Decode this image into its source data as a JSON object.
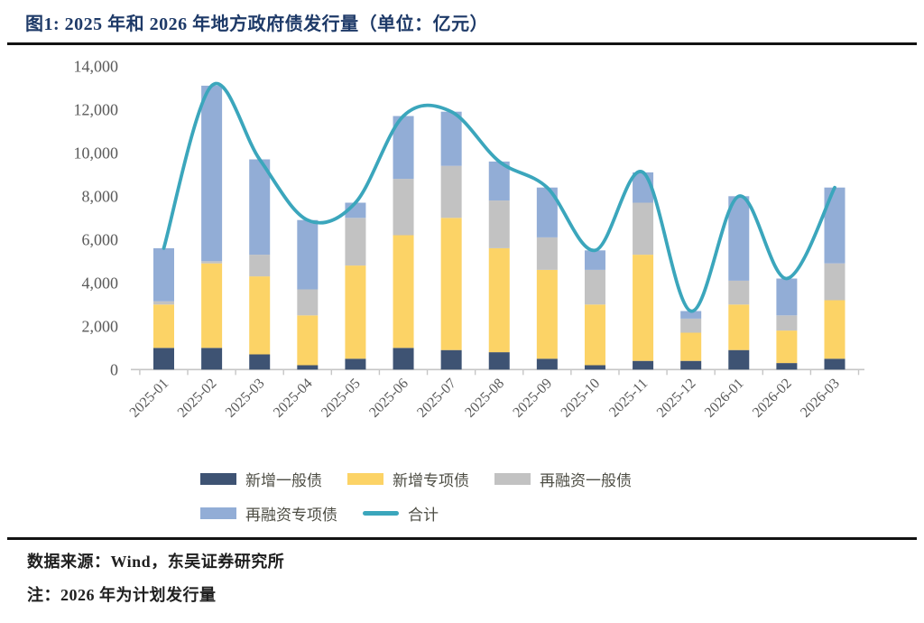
{
  "header": {
    "title": "图1:  2025 年和 2026 年地方政府债发行量（单位：亿元）"
  },
  "chart_data": {
    "type": "bar",
    "subtype": "stacked-bar-with-line",
    "title": "2025 年和 2026 年地方政府债发行量",
    "unit": "亿元",
    "xlabel": "",
    "ylabel": "",
    "ylim": [
      0,
      14000
    ],
    "ytick_step": 2000,
    "grid": false,
    "stacked": true,
    "legend_position": "bottom",
    "categories": [
      "2025-01",
      "2025-02",
      "2025-03",
      "2025-04",
      "2025-05",
      "2025-06",
      "2025-07",
      "2025-08",
      "2025-09",
      "2025-10",
      "2025-11",
      "2025-12",
      "2026-01",
      "2026-02",
      "2026-03"
    ],
    "series": [
      {
        "name": "新增一般债",
        "type": "bar",
        "color": "#3e5373",
        "values": [
          1000,
          1000,
          700,
          200,
          500,
          1000,
          900,
          800,
          500,
          200,
          400,
          400,
          900,
          300,
          500
        ]
      },
      {
        "name": "新增专项债",
        "type": "bar",
        "color": "#fcd366",
        "values": [
          2000,
          3900,
          3600,
          2300,
          4300,
          5200,
          6100,
          4800,
          4100,
          2800,
          4900,
          1300,
          2100,
          1500,
          2700
        ]
      },
      {
        "name": "再融资一般债",
        "type": "bar",
        "color": "#c2c2c2",
        "values": [
          150,
          100,
          1000,
          1200,
          2200,
          2600,
          2400,
          2200,
          1500,
          1600,
          2400,
          650,
          1100,
          700,
          1700
        ]
      },
      {
        "name": "再融资专项债",
        "type": "bar",
        "color": "#92add6",
        "values": [
          2450,
          8100,
          4400,
          3200,
          700,
          2900,
          2500,
          1800,
          2300,
          900,
          1400,
          350,
          3900,
          1700,
          3500
        ]
      },
      {
        "name": "合计",
        "type": "line",
        "color": "#3ba6bc",
        "values": [
          5600,
          13100,
          9700,
          6900,
          7700,
          11700,
          11900,
          9600,
          8400,
          5500,
          9100,
          2700,
          8000,
          4200,
          8400
        ]
      }
    ],
    "axis_text_color": "#595959"
  },
  "footer": {
    "source": "数据来源：Wind，东吴证券研究所",
    "note": "注：2026 年为计划发行量"
  }
}
